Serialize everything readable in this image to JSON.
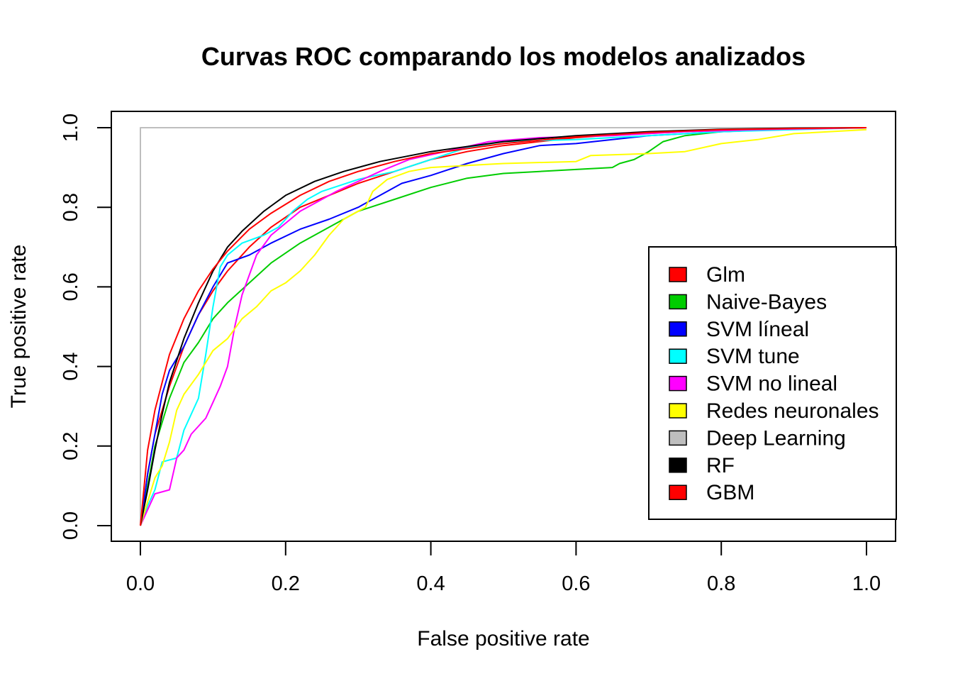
{
  "chart_data": {
    "type": "line",
    "title": "Curvas ROC comparando los modelos analizados",
    "xlabel": "False positive rate",
    "ylabel": "True positive rate",
    "xlim": [
      0,
      1
    ],
    "ylim": [
      0,
      1
    ],
    "x_ticks": [
      "0.0",
      "0.2",
      "0.4",
      "0.6",
      "0.8",
      "1.0"
    ],
    "y_ticks": [
      "0.0",
      "0.2",
      "0.4",
      "0.6",
      "0.8",
      "1.0"
    ],
    "grid": false,
    "legend_position": "right",
    "series": [
      {
        "name": "Glm",
        "color": "#ff0000",
        "points": [
          [
            0,
            0
          ],
          [
            0.01,
            0.13
          ],
          [
            0.02,
            0.23
          ],
          [
            0.04,
            0.35
          ],
          [
            0.06,
            0.45
          ],
          [
            0.08,
            0.53
          ],
          [
            0.1,
            0.59
          ],
          [
            0.12,
            0.64
          ],
          [
            0.15,
            0.7
          ],
          [
            0.18,
            0.75
          ],
          [
            0.22,
            0.8
          ],
          [
            0.26,
            0.83
          ],
          [
            0.3,
            0.86
          ],
          [
            0.35,
            0.89
          ],
          [
            0.4,
            0.92
          ],
          [
            0.45,
            0.94
          ],
          [
            0.5,
            0.955
          ],
          [
            0.6,
            0.975
          ],
          [
            0.7,
            0.988
          ],
          [
            0.8,
            0.995
          ],
          [
            0.9,
            0.998
          ],
          [
            1,
            1
          ]
        ]
      },
      {
        "name": "Naive-Bayes",
        "color": "#00cd00",
        "points": [
          [
            0,
            0
          ],
          [
            0.01,
            0.1
          ],
          [
            0.02,
            0.2
          ],
          [
            0.04,
            0.32
          ],
          [
            0.06,
            0.41
          ],
          [
            0.08,
            0.46
          ],
          [
            0.1,
            0.52
          ],
          [
            0.12,
            0.56
          ],
          [
            0.15,
            0.61
          ],
          [
            0.18,
            0.66
          ],
          [
            0.22,
            0.71
          ],
          [
            0.26,
            0.75
          ],
          [
            0.3,
            0.79
          ],
          [
            0.35,
            0.82
          ],
          [
            0.4,
            0.85
          ],
          [
            0.45,
            0.873
          ],
          [
            0.5,
            0.885
          ],
          [
            0.55,
            0.89
          ],
          [
            0.6,
            0.895
          ],
          [
            0.65,
            0.9
          ],
          [
            0.66,
            0.91
          ],
          [
            0.68,
            0.92
          ],
          [
            0.7,
            0.94
          ],
          [
            0.72,
            0.965
          ],
          [
            0.75,
            0.98
          ],
          [
            0.8,
            0.99
          ],
          [
            0.9,
            0.997
          ],
          [
            1,
            1
          ]
        ]
      },
      {
        "name": "SVM líneal",
        "color": "#0000ff",
        "points": [
          [
            0,
            0
          ],
          [
            0.005,
            0.06
          ],
          [
            0.01,
            0.13
          ],
          [
            0.02,
            0.23
          ],
          [
            0.03,
            0.33
          ],
          [
            0.04,
            0.39
          ],
          [
            0.06,
            0.45
          ],
          [
            0.08,
            0.53
          ],
          [
            0.1,
            0.6
          ],
          [
            0.12,
            0.66
          ],
          [
            0.15,
            0.68
          ],
          [
            0.18,
            0.71
          ],
          [
            0.22,
            0.745
          ],
          [
            0.26,
            0.77
          ],
          [
            0.3,
            0.8
          ],
          [
            0.33,
            0.83
          ],
          [
            0.36,
            0.86
          ],
          [
            0.4,
            0.88
          ],
          [
            0.45,
            0.91
          ],
          [
            0.5,
            0.935
          ],
          [
            0.55,
            0.955
          ],
          [
            0.6,
            0.96
          ],
          [
            0.65,
            0.97
          ],
          [
            0.7,
            0.98
          ],
          [
            0.8,
            0.99
          ],
          [
            0.9,
            0.997
          ],
          [
            1,
            1
          ]
        ]
      },
      {
        "name": "SVM tune",
        "color": "#00ffff",
        "points": [
          [
            0,
            0
          ],
          [
            0.01,
            0.05
          ],
          [
            0.02,
            0.09
          ],
          [
            0.03,
            0.16
          ],
          [
            0.05,
            0.17
          ],
          [
            0.06,
            0.24
          ],
          [
            0.08,
            0.32
          ],
          [
            0.09,
            0.43
          ],
          [
            0.1,
            0.55
          ],
          [
            0.11,
            0.65
          ],
          [
            0.12,
            0.68
          ],
          [
            0.14,
            0.71
          ],
          [
            0.17,
            0.73
          ],
          [
            0.19,
            0.75
          ],
          [
            0.21,
            0.79
          ],
          [
            0.23,
            0.82
          ],
          [
            0.25,
            0.84
          ],
          [
            0.3,
            0.87
          ],
          [
            0.35,
            0.89
          ],
          [
            0.4,
            0.92
          ],
          [
            0.45,
            0.95
          ],
          [
            0.5,
            0.965
          ],
          [
            0.6,
            0.97
          ],
          [
            0.7,
            0.98
          ],
          [
            0.8,
            0.99
          ],
          [
            0.9,
            0.995
          ],
          [
            1,
            1
          ]
        ]
      },
      {
        "name": "SVM no lineal",
        "color": "#ff00ff",
        "points": [
          [
            0,
            0
          ],
          [
            0.01,
            0.04
          ],
          [
            0.02,
            0.08
          ],
          [
            0.04,
            0.09
          ],
          [
            0.05,
            0.17
          ],
          [
            0.06,
            0.19
          ],
          [
            0.07,
            0.23
          ],
          [
            0.09,
            0.27
          ],
          [
            0.1,
            0.31
          ],
          [
            0.11,
            0.35
          ],
          [
            0.12,
            0.4
          ],
          [
            0.13,
            0.5
          ],
          [
            0.14,
            0.58
          ],
          [
            0.15,
            0.63
          ],
          [
            0.16,
            0.68
          ],
          [
            0.18,
            0.73
          ],
          [
            0.2,
            0.76
          ],
          [
            0.22,
            0.79
          ],
          [
            0.24,
            0.81
          ],
          [
            0.27,
            0.84
          ],
          [
            0.3,
            0.865
          ],
          [
            0.33,
            0.89
          ],
          [
            0.37,
            0.92
          ],
          [
            0.42,
            0.94
          ],
          [
            0.48,
            0.965
          ],
          [
            0.55,
            0.975
          ],
          [
            0.65,
            0.98
          ],
          [
            0.75,
            0.99
          ],
          [
            0.85,
            0.995
          ],
          [
            1,
            1
          ]
        ]
      },
      {
        "name": "Redes neuronales",
        "color": "#ffff00",
        "points": [
          [
            0,
            0
          ],
          [
            0.01,
            0.06
          ],
          [
            0.02,
            0.12
          ],
          [
            0.03,
            0.15
          ],
          [
            0.04,
            0.21
          ],
          [
            0.05,
            0.29
          ],
          [
            0.06,
            0.33
          ],
          [
            0.08,
            0.38
          ],
          [
            0.1,
            0.44
          ],
          [
            0.12,
            0.47
          ],
          [
            0.14,
            0.52
          ],
          [
            0.16,
            0.55
          ],
          [
            0.18,
            0.59
          ],
          [
            0.2,
            0.61
          ],
          [
            0.22,
            0.64
          ],
          [
            0.24,
            0.68
          ],
          [
            0.26,
            0.73
          ],
          [
            0.28,
            0.77
          ],
          [
            0.31,
            0.8
          ],
          [
            0.32,
            0.84
          ],
          [
            0.34,
            0.87
          ],
          [
            0.37,
            0.89
          ],
          [
            0.4,
            0.9
          ],
          [
            0.45,
            0.905
          ],
          [
            0.5,
            0.91
          ],
          [
            0.6,
            0.915
          ],
          [
            0.62,
            0.93
          ],
          [
            0.7,
            0.935
          ],
          [
            0.75,
            0.94
          ],
          [
            0.8,
            0.96
          ],
          [
            0.85,
            0.97
          ],
          [
            0.9,
            0.985
          ],
          [
            1,
            0.995
          ]
        ]
      },
      {
        "name": "Deep Learning",
        "color": "#bebebe",
        "points": [
          [
            0,
            0
          ],
          [
            0,
            1
          ],
          [
            1,
            1
          ]
        ]
      },
      {
        "name": "RF",
        "color": "#000000",
        "points": [
          [
            0,
            0
          ],
          [
            0.01,
            0.09
          ],
          [
            0.02,
            0.19
          ],
          [
            0.03,
            0.28
          ],
          [
            0.04,
            0.36
          ],
          [
            0.06,
            0.47
          ],
          [
            0.08,
            0.56
          ],
          [
            0.1,
            0.64
          ],
          [
            0.12,
            0.7
          ],
          [
            0.14,
            0.74
          ],
          [
            0.17,
            0.79
          ],
          [
            0.2,
            0.83
          ],
          [
            0.24,
            0.865
          ],
          [
            0.28,
            0.89
          ],
          [
            0.33,
            0.915
          ],
          [
            0.4,
            0.94
          ],
          [
            0.5,
            0.965
          ],
          [
            0.6,
            0.98
          ],
          [
            0.7,
            0.99
          ],
          [
            0.8,
            0.996
          ],
          [
            0.9,
            0.999
          ],
          [
            1,
            1
          ]
        ]
      },
      {
        "name": "GBM",
        "color": "#ff0000",
        "points": [
          [
            0,
            0
          ],
          [
            0.01,
            0.19
          ],
          [
            0.02,
            0.29
          ],
          [
            0.03,
            0.36
          ],
          [
            0.04,
            0.43
          ],
          [
            0.06,
            0.52
          ],
          [
            0.08,
            0.59
          ],
          [
            0.1,
            0.645
          ],
          [
            0.12,
            0.69
          ],
          [
            0.15,
            0.745
          ],
          [
            0.18,
            0.785
          ],
          [
            0.22,
            0.83
          ],
          [
            0.26,
            0.865
          ],
          [
            0.3,
            0.89
          ],
          [
            0.35,
            0.915
          ],
          [
            0.4,
            0.935
          ],
          [
            0.5,
            0.96
          ],
          [
            0.6,
            0.977
          ],
          [
            0.7,
            0.988
          ],
          [
            0.8,
            0.995
          ],
          [
            0.9,
            0.998
          ],
          [
            1,
            1
          ]
        ]
      }
    ]
  }
}
